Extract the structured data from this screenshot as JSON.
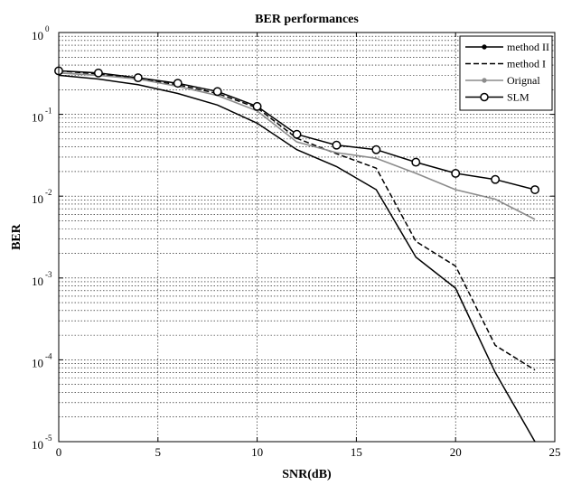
{
  "chart_data": {
    "type": "line",
    "title": "BER performances",
    "xlabel": "SNR(dB)",
    "ylabel": "BER",
    "xlim": [
      0,
      25
    ],
    "ylim": [
      1e-05,
      1
    ],
    "yscale": "log",
    "grid": true,
    "legend_position": "top-right",
    "x_ticks": [
      0,
      5,
      10,
      15,
      20,
      25
    ],
    "x_tick_labels": [
      "0",
      "5",
      "10",
      "15",
      "20",
      "25"
    ],
    "y_ticks": [
      {
        "value": 1,
        "base": "10",
        "exp": "0"
      },
      {
        "value": 0.1,
        "base": "10",
        "exp": "-1"
      },
      {
        "value": 0.01,
        "base": "10",
        "exp": "-2"
      },
      {
        "value": 0.001,
        "base": "10",
        "exp": "-3"
      },
      {
        "value": 0.0001,
        "base": "10",
        "exp": "-4"
      },
      {
        "value": 1e-05,
        "base": "10",
        "exp": "-5"
      }
    ],
    "series": [
      {
        "name": "method II",
        "color": "#000000",
        "dash": "solid",
        "marker": "dot-legend",
        "x": [
          0,
          2,
          4,
          6,
          8,
          10,
          12,
          14,
          16,
          18,
          20,
          22,
          24
        ],
        "y": [
          0.3,
          0.27,
          0.23,
          0.18,
          0.13,
          0.078,
          0.037,
          0.023,
          0.012,
          0.0018,
          0.00075,
          7e-05,
          1e-05
        ]
      },
      {
        "name": "method I",
        "color": "#000000",
        "dash": "dashed",
        "marker": "none",
        "x": [
          0,
          2,
          4,
          6,
          8,
          10,
          12,
          14,
          16,
          18,
          20,
          22,
          24
        ],
        "y": [
          0.34,
          0.31,
          0.27,
          0.23,
          0.18,
          0.12,
          0.051,
          0.033,
          0.022,
          0.0028,
          0.0014,
          0.00015,
          7.5e-05
        ]
      },
      {
        "name": "Orignal",
        "color": "#8c8c8c",
        "dash": "solid",
        "marker": "dot-legend",
        "x": [
          0,
          2,
          4,
          6,
          8,
          10,
          12,
          14,
          16,
          18,
          20,
          22,
          24
        ],
        "y": [
          0.32,
          0.3,
          0.27,
          0.22,
          0.17,
          0.11,
          0.046,
          0.034,
          0.029,
          0.019,
          0.012,
          0.0092,
          0.0052
        ]
      },
      {
        "name": "SLM",
        "color": "#000000",
        "dash": "solid",
        "marker": "circle",
        "x": [
          0,
          2,
          4,
          6,
          8,
          10,
          12,
          14,
          16,
          18,
          20,
          22,
          24
        ],
        "y": [
          0.34,
          0.32,
          0.28,
          0.24,
          0.19,
          0.125,
          0.057,
          0.042,
          0.037,
          0.026,
          0.019,
          0.016,
          0.012
        ]
      }
    ]
  }
}
